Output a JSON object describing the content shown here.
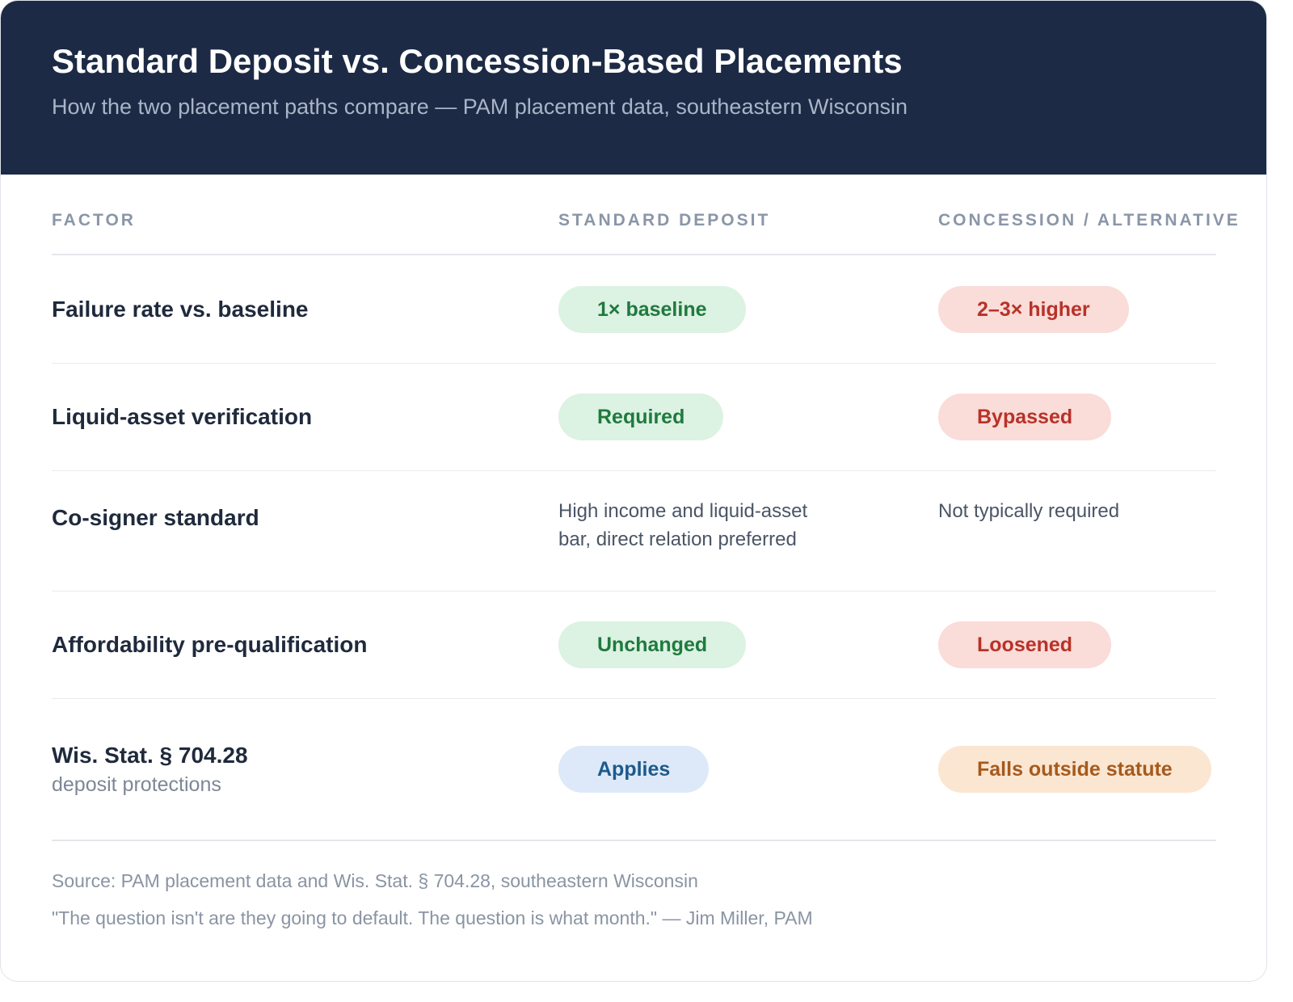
{
  "header": {
    "title": "Standard Deposit vs. Concession-Based Placements",
    "subtitle": "How the two placement paths compare — PAM placement data, southeastern Wisconsin"
  },
  "table": {
    "columns": [
      "FACTOR",
      "STANDARD DEPOSIT",
      "CONCESSION / ALTERNATIVE"
    ],
    "rows": [
      {
        "factor": "Failure rate vs. baseline",
        "standard": {
          "text": "1× baseline",
          "tone": "green"
        },
        "concession": {
          "text": "2–3× higher",
          "tone": "red"
        }
      },
      {
        "factor": "Liquid-asset verification",
        "standard": {
          "text": "Required",
          "tone": "green"
        },
        "concession": {
          "text": "Bypassed",
          "tone": "red"
        }
      },
      {
        "factor": "Co-signer standard",
        "standard": {
          "text": "High income and liquid-asset bar, direct relation preferred"
        },
        "concession": {
          "text": "Not typically required"
        }
      },
      {
        "factor": "Affordability pre-qualification",
        "standard": {
          "text": "Unchanged",
          "tone": "green"
        },
        "concession": {
          "text": "Loosened",
          "tone": "red"
        }
      },
      {
        "factor": "Wis. Stat. § 704.28",
        "note": "deposit protections",
        "standard": {
          "text": "Applies",
          "tone": "blue"
        },
        "concession": {
          "text": "Falls outside statute",
          "tone": "orange"
        }
      }
    ]
  },
  "footer": {
    "source": "Source: PAM placement data and Wis. Stat. § 704.28, southeastern Wisconsin",
    "quote": "\"The question isn't are they going to default. The question is what month.\" — Jim Miller, PAM"
  }
}
